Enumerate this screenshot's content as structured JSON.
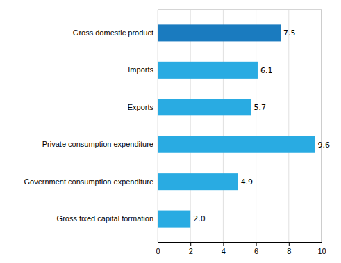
{
  "chart_data": {
    "type": "bar",
    "orientation": "horizontal",
    "categories": [
      "Gross fixed capital formation",
      "Government consumption expenditure",
      "Private consumption expenditure",
      "Exports",
      "Imports",
      "Gross domestic product"
    ],
    "values": [
      2.0,
      4.9,
      9.6,
      5.7,
      6.1,
      7.5
    ],
    "value_labels": [
      "2.0",
      "4.9",
      "9.6",
      "5.7",
      "6.1",
      "7.5"
    ],
    "data_labels": true,
    "colors": [
      "#29ABE2",
      "#29ABE2",
      "#29ABE2",
      "#29ABE2",
      "#29ABE2",
      "#1A7BBF"
    ],
    "xlim": [
      0,
      10
    ],
    "xticks": [
      0,
      2,
      4,
      6,
      8,
      10
    ],
    "grid": true
  }
}
